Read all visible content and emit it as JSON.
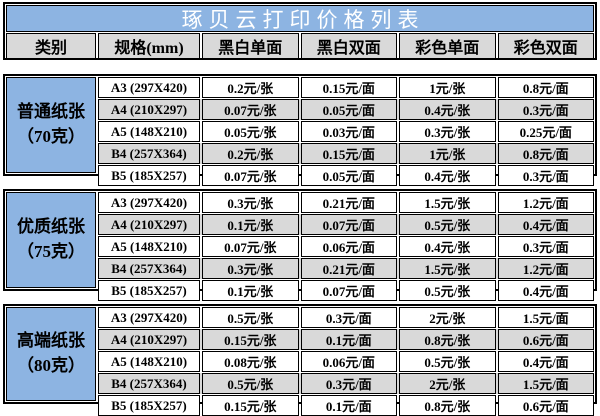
{
  "title": "琢贝云打印价格列表",
  "columns": [
    "类别",
    "规格(mm)",
    "黑白单面",
    "黑白双面",
    "彩色单面",
    "彩色双面"
  ],
  "sections": [
    {
      "category": "普通纸张",
      "weight": "（70克）",
      "rows": [
        {
          "spec": "A3 (297X420)",
          "prices": [
            "0.2元/张",
            "0.15元/面",
            "1元/张",
            "0.8元/面"
          ]
        },
        {
          "spec": "A4 (210X297)",
          "prices": [
            "0.07元/张",
            "0.05元/面",
            "0.4元/张",
            "0.3元/面"
          ]
        },
        {
          "spec": "A5 (148X210)",
          "prices": [
            "0.05元/张",
            "0.03元/面",
            "0.3元/张",
            "0.25元/面"
          ]
        },
        {
          "spec": "B4 (257X364)",
          "prices": [
            "0.2元/张",
            "0.15元/面",
            "1元/张",
            "0.8元/面"
          ]
        },
        {
          "spec": "B5 (185X257)",
          "prices": [
            "0.07元/张",
            "0.05元/面",
            "0.4元/张",
            "0.3元/面"
          ]
        }
      ]
    },
    {
      "category": "优质纸张",
      "weight": "（75克）",
      "rows": [
        {
          "spec": "A3 (297X420)",
          "prices": [
            "0.3元/张",
            "0.21元/面",
            "1.5元/张",
            "1.2元/面"
          ]
        },
        {
          "spec": "A4 (210X297)",
          "prices": [
            "0.1元/张",
            "0.07元/面",
            "0.5元/张",
            "0.4元/面"
          ]
        },
        {
          "spec": "A5 (148X210)",
          "prices": [
            "0.07元/张",
            "0.06元/面",
            "0.4元/张",
            "0.3元/面"
          ]
        },
        {
          "spec": "B4 (257X364)",
          "prices": [
            "0.3元/张",
            "0.21元/面",
            "1.5元/张",
            "1.2元/面"
          ]
        },
        {
          "spec": "B5 (185X257)",
          "prices": [
            "0.1元/张",
            "0.07元/面",
            "0.5元/张",
            "0.4元/面"
          ]
        }
      ]
    },
    {
      "category": "高端纸张",
      "weight": "（80克）",
      "rows": [
        {
          "spec": "A3 (297X420)",
          "prices": [
            "0.5元/张",
            "0.3元/面",
            "2元/张",
            "1.5元/面"
          ]
        },
        {
          "spec": "A4 (210X297)",
          "prices": [
            "0.15元/张",
            "0.1元/面",
            "0.8元/张",
            "0.6元/面"
          ]
        },
        {
          "spec": "A5 (148X210)",
          "prices": [
            "0.08元/张",
            "0.06元/面",
            "0.5元/张",
            "0.4元/面"
          ]
        },
        {
          "spec": "B4 (257X364)",
          "prices": [
            "0.5元/张",
            "0.3元/面",
            "2元/张",
            "1.5元/面"
          ]
        },
        {
          "spec": "B5 (185X257)",
          "prices": [
            "0.15元/张",
            "0.1元/面",
            "0.8元/张",
            "0.6元/面"
          ]
        }
      ]
    }
  ],
  "colors": {
    "title_bg": "#8DB4E2",
    "title_text": "#FFFFFF",
    "category_bg": "#8DB4E2",
    "header_bg": "#D9D9D9",
    "alt_row_bg": "#D9D9D9",
    "border": "#000000"
  }
}
